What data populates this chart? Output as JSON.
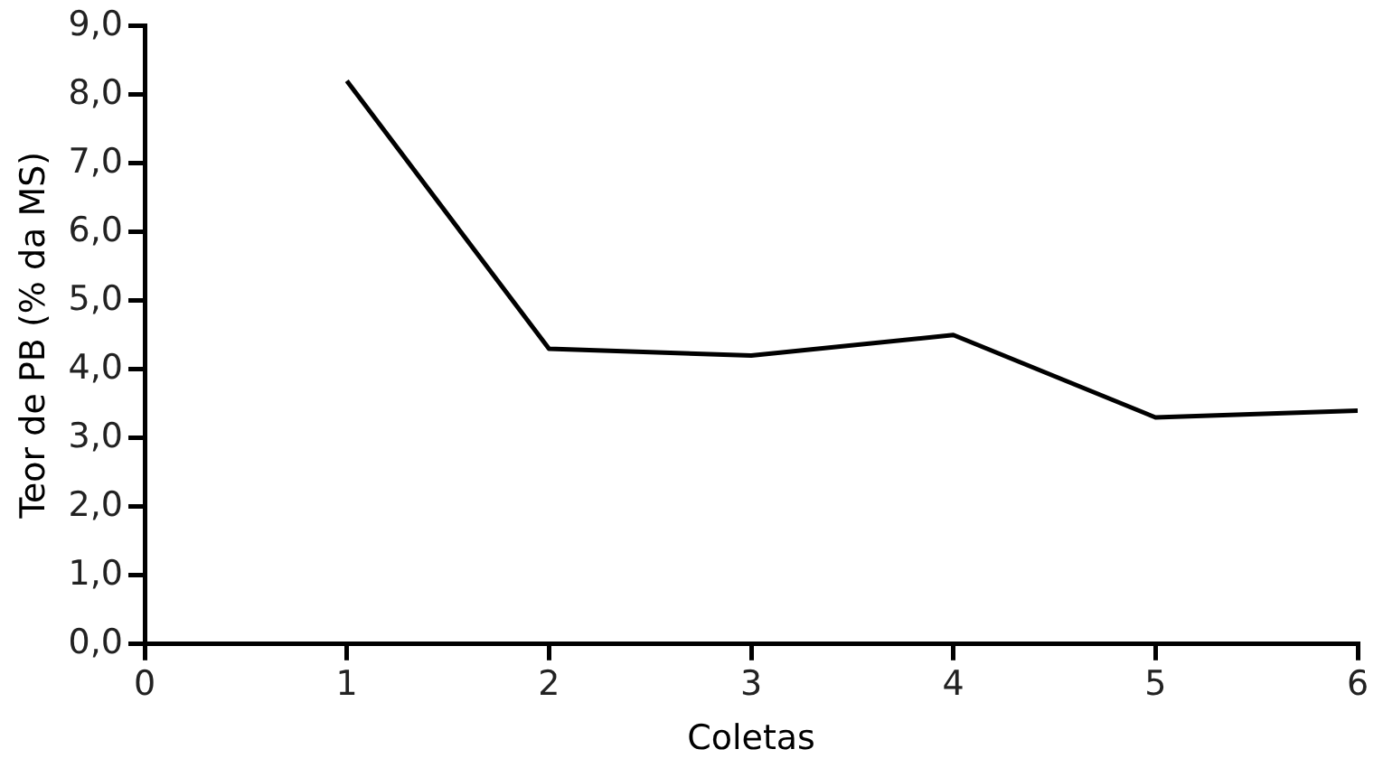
{
  "chart_data": {
    "type": "line",
    "xlabel": "Coletas",
    "ylabel": "Teor de PB (% da MS)",
    "x": [
      1,
      2,
      3,
      4,
      5,
      6
    ],
    "series": [
      {
        "color": "#000000",
        "values": [
          8.2,
          4.3,
          4.2,
          4.5,
          3.3,
          3.4
        ]
      }
    ],
    "xlim": [
      0,
      6
    ],
    "xticks": [
      0,
      1,
      2,
      3,
      4,
      5,
      6
    ],
    "ylim": [
      0,
      9
    ],
    "yticks": [
      {
        "value": 0,
        "label": "0,0"
      },
      {
        "value": 1,
        "label": "1,0"
      },
      {
        "value": 2,
        "label": "2,0"
      },
      {
        "value": 3,
        "label": "3,0"
      },
      {
        "value": 4,
        "label": "4,0"
      },
      {
        "value": 5,
        "label": "5,0"
      },
      {
        "value": 6,
        "label": "6,0"
      },
      {
        "value": 7,
        "label": "7,0"
      },
      {
        "value": 8,
        "label": "8,0"
      },
      {
        "value": 9,
        "label": "9,0"
      }
    ],
    "grid": false,
    "legend": false,
    "marker": "none",
    "line_style": "solid"
  }
}
